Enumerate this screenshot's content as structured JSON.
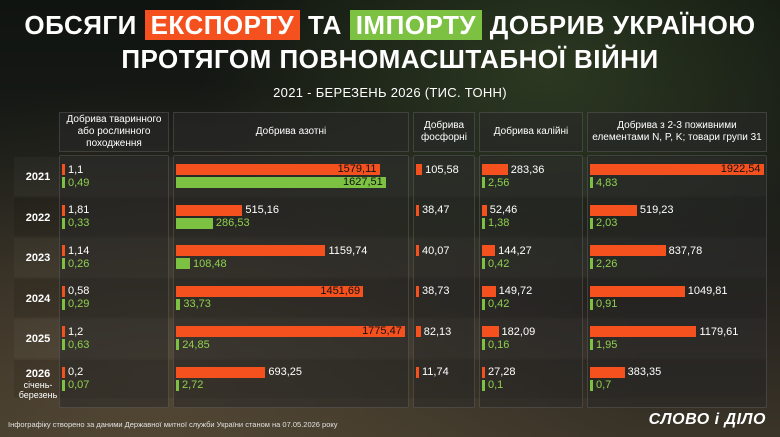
{
  "title": {
    "line1_pre": "ОБСЯГИ",
    "export_word": "ЕКСПОРТУ",
    "line1_mid": "ТА",
    "import_word": "ІМПОРТУ",
    "line1_post": "ДОБРИВ УКРАЇНОЮ",
    "line2": "ПРОТЯГОМ ПОВНОМАСШТАБНОЇ ВІЙНИ"
  },
  "subtitle": "2021 - БЕРЕЗЕНЬ 2026 (ТИС. ТОНН)",
  "colors": {
    "export": "#f4511e",
    "import": "#7cc142",
    "export_title_bg": "#f4511e",
    "import_title_bg": "#7cc142"
  },
  "columns": [
    "Добрива тваринного або рослинного походження",
    "Добрива азотні",
    "Добрива фосфорні",
    "Добрива калійні",
    "Добрива з 2-3 поживними елементами N, P, K; товари групи 31"
  ],
  "years": [
    {
      "label": "2021",
      "sub": ""
    },
    {
      "label": "2022",
      "sub": ""
    },
    {
      "label": "2023",
      "sub": ""
    },
    {
      "label": "2024",
      "sub": ""
    },
    {
      "label": "2025",
      "sub": ""
    },
    {
      "label": "2026",
      "sub": "січень-березень"
    }
  ],
  "chart_data": {
    "type": "bar",
    "categories": [
      "2021",
      "2022",
      "2023",
      "2024",
      "2025",
      "2026 січень-березень"
    ],
    "groups": [
      {
        "name": "Добрива тваринного або рослинного походження",
        "series": [
          {
            "name": "експорт",
            "values": [
              1.1,
              1.81,
              1.14,
              0.58,
              1.2,
              0.2
            ],
            "labels": [
              "1,1",
              "1,81",
              "1,14",
              "0,58",
              "1,2",
              "0,2"
            ]
          },
          {
            "name": "імпорт",
            "values": [
              0.49,
              0.33,
              0.26,
              0.29,
              0.63,
              0.07
            ],
            "labels": [
              "0,49",
              "0,33",
              "0,26",
              "0,29",
              "0,63",
              "0,07"
            ]
          }
        ]
      },
      {
        "name": "Добрива азотні",
        "series": [
          {
            "name": "експорт",
            "values": [
              1579.11,
              515.16,
              1159.74,
              1451.69,
              1775.47,
              693.25
            ],
            "labels": [
              "1579,11",
              "515,16",
              "1159,74",
              "1451,69",
              "1775,47",
              "693,25"
            ]
          },
          {
            "name": "імпорт",
            "values": [
              1627.51,
              286.53,
              108.48,
              33.73,
              24.85,
              2.72
            ],
            "labels": [
              "1627,51",
              "286,53",
              "108,48",
              "33,73",
              "24,85",
              "2,72"
            ]
          }
        ]
      },
      {
        "name": "Добрива фосфорні",
        "series": [
          {
            "name": "експорт",
            "values": [
              105.58,
              38.47,
              40.07,
              38.73,
              82.13,
              11.74
            ],
            "labels": [
              "105,58",
              "38,47",
              "40,07",
              "38,73",
              "82,13",
              "11,74"
            ]
          },
          {
            "name": "імпорт",
            "values": [
              null,
              null,
              null,
              null,
              null,
              null
            ],
            "labels": [
              "",
              "",
              "",
              "",
              "",
              ""
            ]
          }
        ]
      },
      {
        "name": "Добрива калійні",
        "series": [
          {
            "name": "експорт",
            "values": [
              283.36,
              52.46,
              144.27,
              149.72,
              182.09,
              27.28
            ],
            "labels": [
              "283,36",
              "52,46",
              "144,27",
              "149,72",
              "182,09",
              "27,28"
            ]
          },
          {
            "name": "імпорт",
            "values": [
              2.56,
              1.38,
              0.42,
              0.42,
              0.16,
              0.1
            ],
            "labels": [
              "2,56",
              "1,38",
              "0,42",
              "0,42",
              "0,16",
              "0,1"
            ]
          }
        ]
      },
      {
        "name": "Добрива з 2-3 поживними елементами N, P, K; товари групи 31",
        "series": [
          {
            "name": "експорт",
            "values": [
              1922.54,
              519.23,
              837.78,
              1049.81,
              1179.61,
              383.35
            ],
            "labels": [
              "1922,54",
              "519,23",
              "837,78",
              "1049,81",
              "1179,61",
              "383,35"
            ]
          },
          {
            "name": "імпорт",
            "values": [
              4.83,
              2.03,
              2.26,
              0.91,
              1.95,
              0.7
            ],
            "labels": [
              "4,83",
              "2,03",
              "2,26",
              "0,91",
              "1,95",
              "0,7"
            ]
          }
        ]
      }
    ]
  },
  "footer": "Інфографіку створено за даними Державної митної служби України станом на 07.05.2026 року",
  "logo": "СЛОВО і ДІЛО",
  "watermark": "СЛОВО і ДІЛО"
}
